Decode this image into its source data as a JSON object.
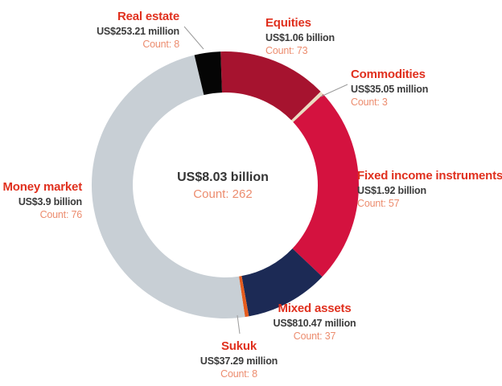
{
  "chart_data": {
    "type": "pie",
    "subtype": "donut",
    "title": "",
    "center_value": "US$8.03 billion",
    "center_count": 262,
    "center_count_text": "Count: 262",
    "units": "USD",
    "start_angle_deg": -2,
    "direction": "clockwise",
    "legend_position": "labels-around-chart",
    "segments": [
      {
        "id": "equities",
        "label": "Equities",
        "value_text": "US$1.06 billion",
        "value_usd_billion": 1.06,
        "count": 73,
        "count_text": "Count: 73",
        "color": "#A6132F"
      },
      {
        "id": "commodities",
        "label": "Commodities",
        "value_text": "US$35.05 million",
        "value_usd_billion": 0.03505,
        "count": 3,
        "count_text": "Count: 3",
        "color": "#EADCC1"
      },
      {
        "id": "fixed-income",
        "label": "Fixed income instruments",
        "value_text": "US$1.92 billion",
        "value_usd_billion": 1.92,
        "count": 57,
        "count_text": "Count: 57",
        "color": "#D4123F"
      },
      {
        "id": "mixed-assets",
        "label": "Mixed assets",
        "value_text": "US$810.47 million",
        "value_usd_billion": 0.81047,
        "count": 37,
        "count_text": "Count: 37",
        "color": "#1C2A55"
      },
      {
        "id": "sukuk",
        "label": "Sukuk",
        "value_text": "US$37.29 million",
        "value_usd_billion": 0.03729,
        "count": 8,
        "count_text": "Count: 8",
        "color": "#E55C1E"
      },
      {
        "id": "money-market",
        "label": "Money market",
        "value_text": "US$3.9 billion",
        "value_usd_billion": 3.9,
        "count": 76,
        "count_text": "Count: 76",
        "color": "#C8CFD5"
      },
      {
        "id": "real-estate",
        "label": "Real estate",
        "value_text": "US$253.21 million",
        "value_usd_billion": 0.25321,
        "count": 8,
        "count_text": "Count: 8",
        "color": "#050505"
      }
    ],
    "colors": {
      "category_label": "#E0301E",
      "value_label": "#3B3B3B",
      "count_label": "#EC8C6E",
      "leader_line": "#9B9B9B",
      "background": "#FFFFFF"
    }
  }
}
